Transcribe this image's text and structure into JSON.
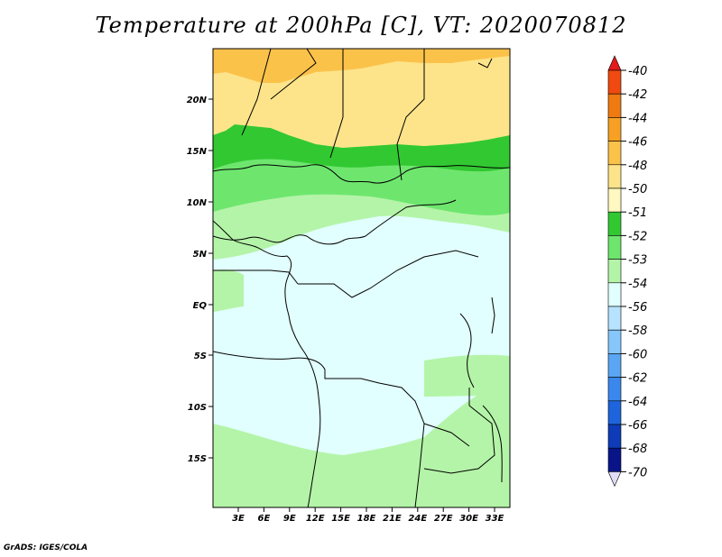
{
  "title": "Temperature at 200hPa [C], VT: 2020070812",
  "footer": "GrADS: IGES/COLA",
  "axes": {
    "lat_labels": [
      "20N",
      "15N",
      "10N",
      "5N",
      "EQ",
      "5S",
      "10S",
      "15S"
    ],
    "lon_labels": [
      "3E",
      "6E",
      "9E",
      "12E",
      "15E",
      "18E",
      "21E",
      "24E",
      "27E",
      "30E",
      "33E"
    ]
  },
  "colorbar": {
    "labels": [
      "-40",
      "-42",
      "-44",
      "-46",
      "-48",
      "-50",
      "-51",
      "-52",
      "-53",
      "-54",
      "-56",
      "-58",
      "-60",
      "-62",
      "-64",
      "-66",
      "-68",
      "-70"
    ],
    "colors": [
      "#e41a1a",
      "#f04a10",
      "#f07a12",
      "#f7a023",
      "#fbc24a",
      "#fde48a",
      "#fff8c0",
      "#32c832",
      "#6ee66e",
      "#b4f4a8",
      "#e1fffe",
      "#b6e3ff",
      "#86c6fb",
      "#5aa6f5",
      "#3a88ee",
      "#1e64dc",
      "#0e3cb8",
      "#081488",
      "#e0dcf8"
    ]
  },
  "regions": {
    "orange": "#fbc24a",
    "yellow": "#fde48a",
    "dark_green": "#32c832",
    "green": "#6ee66e",
    "light_green": "#b4f4a8",
    "cyan": "#e1fffe"
  }
}
